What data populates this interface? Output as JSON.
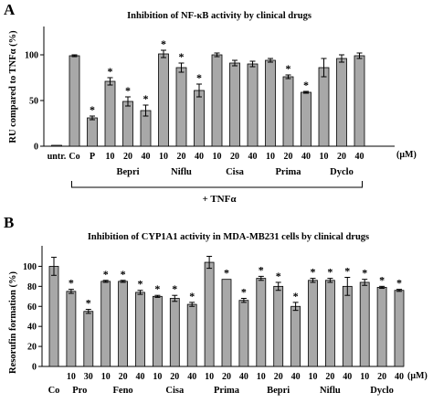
{
  "colors": {
    "bar": "#a8a8a8",
    "axis": "#000000"
  },
  "chart_data": [
    {
      "panel_label": "A",
      "type": "bar",
      "title": "Inhibition of NF-κB activity by clinical drugs",
      "ylabel": "RU compared to TNFα (%)",
      "ylim": [
        0,
        125
      ],
      "yticks": [
        "0",
        "50",
        "100"
      ],
      "unit_label": "(μM)",
      "condition_label": "+ TNFα",
      "first_tick_label": "untr.",
      "bars": [
        {
          "label": "untr.",
          "value": 1,
          "err": 0,
          "star": false
        },
        {
          "label": "Co",
          "value": 99,
          "err": 1,
          "star": false
        },
        {
          "label": "P",
          "value": 31,
          "err": 2,
          "star": true
        },
        {
          "label": "10",
          "value": 71,
          "err": 4,
          "star": true
        },
        {
          "label": "20",
          "value": 49,
          "err": 5,
          "star": true
        },
        {
          "label": "40",
          "value": 39,
          "err": 6,
          "star": true
        },
        {
          "label": "10",
          "value": 101,
          "err": 4,
          "star": true
        },
        {
          "label": "20",
          "value": 86,
          "err": 5,
          "star": true
        },
        {
          "label": "40",
          "value": 61,
          "err": 7,
          "star": true
        },
        {
          "label": "10",
          "value": 100,
          "err": 2,
          "star": false
        },
        {
          "label": "20",
          "value": 91,
          "err": 3,
          "star": false
        },
        {
          "label": "40",
          "value": 90,
          "err": 3,
          "star": false
        },
        {
          "label": "10",
          "value": 94,
          "err": 2,
          "star": false
        },
        {
          "label": "20",
          "value": 76,
          "err": 2,
          "star": true
        },
        {
          "label": "40",
          "value": 59,
          "err": 1,
          "star": true
        },
        {
          "label": "10",
          "value": 86,
          "err": 10,
          "star": false
        },
        {
          "label": "20",
          "value": 96,
          "err": 4,
          "star": false
        },
        {
          "label": "40",
          "value": 99,
          "err": 3,
          "star": false
        }
      ],
      "groups": [
        {
          "name": "Bepri",
          "from": 3,
          "to": 5
        },
        {
          "name": "Niflu",
          "from": 6,
          "to": 8
        },
        {
          "name": "Cisa",
          "from": 9,
          "to": 11
        },
        {
          "name": "Prima",
          "from": 12,
          "to": 14
        },
        {
          "name": "Dyclo",
          "from": 15,
          "to": 17
        }
      ]
    },
    {
      "panel_label": "B",
      "type": "bar",
      "title": "Inhibition of CYP1A1 activity in MDA-MB231 cells by clinical drugs",
      "ylabel": "Resorufin formation (%)",
      "ylim": [
        0,
        115
      ],
      "yticks": [
        "0",
        "20",
        "40",
        "60",
        "80",
        "100"
      ],
      "unit_label": "(μM)",
      "first_group_label": "Co",
      "bars": [
        {
          "label": "",
          "value": 100,
          "err": 9,
          "star": false
        },
        {
          "label": "10",
          "value": 75,
          "err": 2,
          "star": true
        },
        {
          "label": "30",
          "value": 55,
          "err": 2,
          "star": true
        },
        {
          "label": "10",
          "value": 85,
          "err": 1,
          "star": true
        },
        {
          "label": "20",
          "value": 85,
          "err": 1,
          "star": true
        },
        {
          "label": "40",
          "value": 74,
          "err": 2,
          "star": true
        },
        {
          "label": "10",
          "value": 70,
          "err": 1,
          "star": true
        },
        {
          "label": "20",
          "value": 68,
          "err": 3,
          "star": true
        },
        {
          "label": "40",
          "value": 62,
          "err": 2,
          "star": true
        },
        {
          "label": "10",
          "value": 104,
          "err": 6,
          "star": false
        },
        {
          "label": "20",
          "value": 87,
          "err": 0,
          "star": true
        },
        {
          "label": "40",
          "value": 66,
          "err": 2,
          "star": true
        },
        {
          "label": "10",
          "value": 88,
          "err": 2,
          "star": true
        },
        {
          "label": "20",
          "value": 80,
          "err": 4,
          "star": true
        },
        {
          "label": "40",
          "value": 60,
          "err": 4,
          "star": true
        },
        {
          "label": "10",
          "value": 86,
          "err": 2,
          "star": true
        },
        {
          "label": "20",
          "value": 86,
          "err": 2,
          "star": true
        },
        {
          "label": "40",
          "value": 80,
          "err": 9,
          "star": true
        },
        {
          "label": "10",
          "value": 84,
          "err": 3,
          "star": true
        },
        {
          "label": "20",
          "value": 79,
          "err": 1,
          "star": true
        },
        {
          "label": "40",
          "value": 76,
          "err": 1,
          "star": true
        }
      ],
      "groups": [
        {
          "name": "Co",
          "from": 0,
          "to": 0
        },
        {
          "name": "Pro",
          "from": 1,
          "to": 2
        },
        {
          "name": "Feno",
          "from": 3,
          "to": 5
        },
        {
          "name": "Cisa",
          "from": 6,
          "to": 8
        },
        {
          "name": "Prima",
          "from": 9,
          "to": 11
        },
        {
          "name": "Bepri",
          "from": 12,
          "to": 14
        },
        {
          "name": "Niflu",
          "from": 15,
          "to": 17
        },
        {
          "name": "Dyclo",
          "from": 18,
          "to": 20
        }
      ]
    }
  ]
}
